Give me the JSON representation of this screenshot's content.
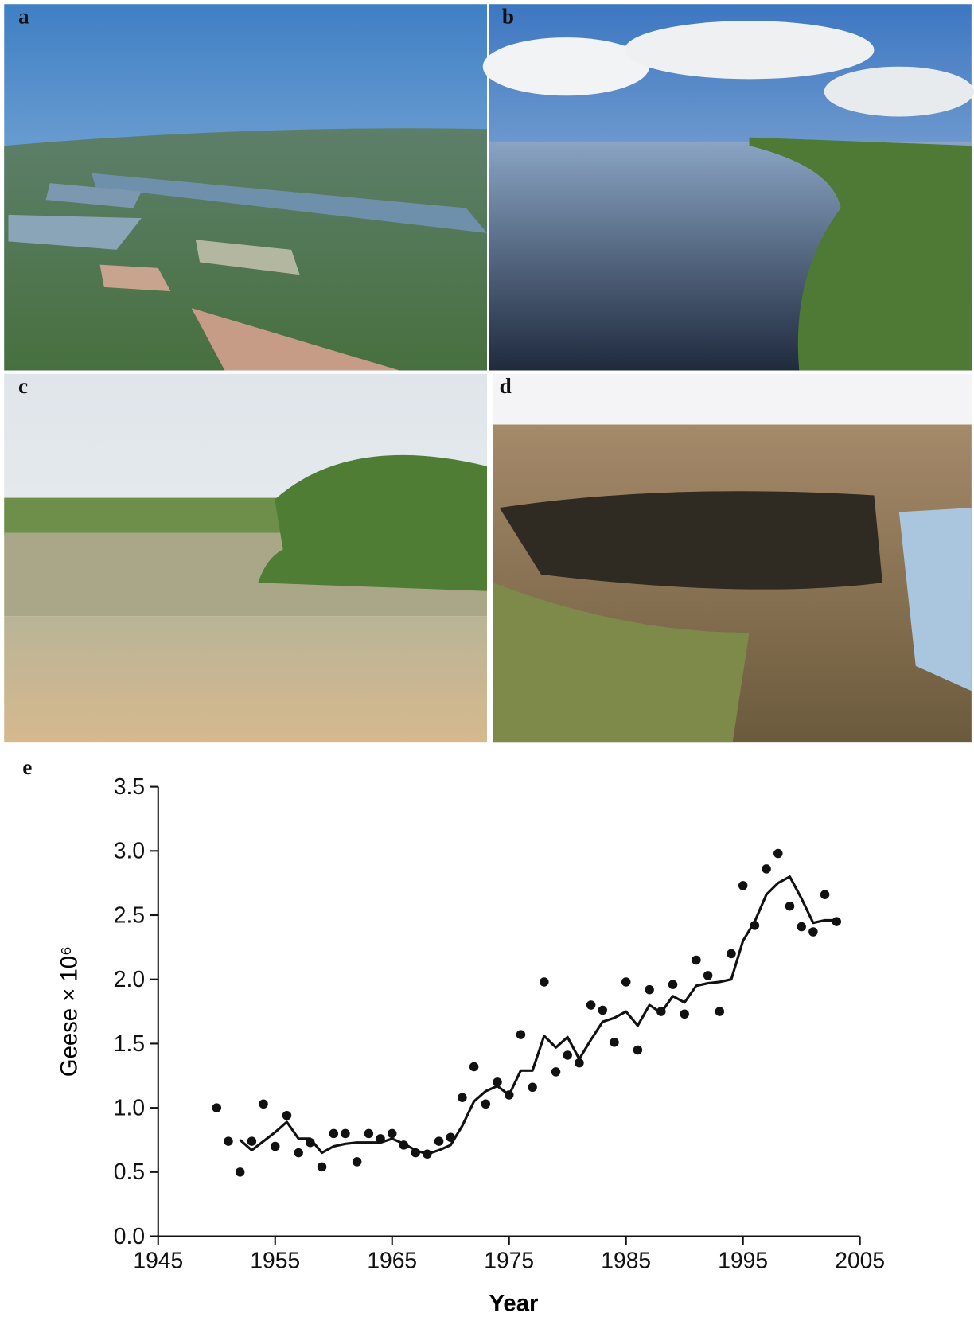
{
  "panels": [
    "a",
    "b",
    "c",
    "d"
  ],
  "chart_data": {
    "type": "line",
    "panel_label": "e",
    "xlabel": "Year",
    "ylabel": "Geese × 10⁶",
    "x": [
      1950,
      1951,
      1952,
      1953,
      1954,
      1955,
      1956,
      1957,
      1958,
      1959,
      1960,
      1961,
      1962,
      1963,
      1964,
      1965,
      1966,
      1967,
      1968,
      1969,
      1970,
      1971,
      1972,
      1973,
      1974,
      1975,
      1976,
      1977,
      1978,
      1979,
      1980,
      1981,
      1982,
      1983,
      1984,
      1985,
      1986,
      1987,
      1988,
      1989,
      1990,
      1991,
      1992,
      1993,
      1994,
      1995,
      1996,
      1997,
      1998,
      1999,
      2000,
      2001,
      2002,
      2003
    ],
    "series": [
      {
        "type": "scatter",
        "color": "#111111",
        "values": [
          1.0,
          0.74,
          0.5,
          0.74,
          1.03,
          0.7,
          0.94,
          0.65,
          0.73,
          0.54,
          0.8,
          0.8,
          0.58,
          0.8,
          0.76,
          0.8,
          0.71,
          0.65,
          0.64,
          0.74,
          0.77,
          1.08,
          1.32,
          1.03,
          1.2,
          1.1,
          1.57,
          1.16,
          1.98,
          1.28,
          1.41,
          1.35,
          1.8,
          1.76,
          1.51,
          1.98,
          1.45,
          1.92,
          1.75,
          1.96,
          1.73,
          2.15,
          2.03,
          1.75,
          2.2,
          2.73,
          2.42,
          2.86,
          2.98,
          2.57,
          2.41,
          2.37,
          2.66,
          2.45
        ]
      },
      {
        "type": "line",
        "color": "#111111",
        "values": [
          null,
          null,
          0.75,
          0.67,
          0.74,
          0.81,
          0.89,
          0.76,
          0.76,
          0.65,
          0.7,
          0.72,
          0.73,
          0.73,
          0.73,
          0.76,
          0.72,
          0.67,
          0.64,
          0.67,
          0.71,
          0.86,
          1.05,
          1.13,
          1.17,
          1.1,
          1.29,
          1.29,
          1.56,
          1.47,
          1.55,
          1.38,
          1.53,
          1.67,
          1.7,
          1.75,
          1.64,
          1.8,
          1.74,
          1.87,
          1.82,
          1.95,
          1.97,
          1.98,
          2.0,
          2.3,
          2.45,
          2.66,
          2.75,
          2.8,
          2.63,
          2.44,
          2.46,
          2.46
        ]
      }
    ],
    "xlim": [
      1945,
      2005
    ],
    "xticks": [
      1945,
      1955,
      1965,
      1975,
      1985,
      1995,
      2005
    ],
    "ylim": [
      0,
      3.5
    ],
    "yticks": [
      {
        "value": 0,
        "label": "0.0"
      },
      {
        "value": 0.5,
        "label": "0.5"
      },
      {
        "value": 1,
        "label": "1.0"
      },
      {
        "value": 1.5,
        "label": "1.5"
      },
      {
        "value": 2,
        "label": "2.0"
      },
      {
        "value": 2.5,
        "label": "2.5"
      },
      {
        "value": 3,
        "label": "3.0"
      },
      {
        "value": 3.5,
        "label": "3.5"
      }
    ]
  }
}
